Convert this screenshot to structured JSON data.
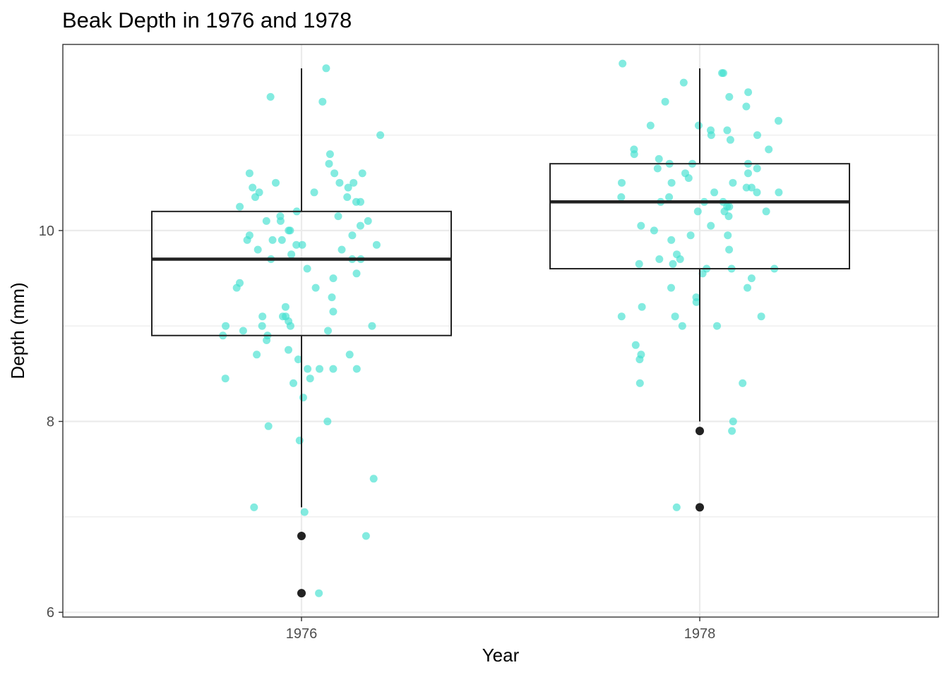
{
  "chart_data": {
    "type": "boxplot",
    "title": "Beak Depth in 1976 and 1978",
    "xlabel": "Year",
    "ylabel": "Depth (mm)",
    "categories": [
      "1976",
      "1978"
    ],
    "ylim": [
      5.95,
      11.95
    ],
    "y_ticks": [
      6,
      8,
      10
    ],
    "grid": true,
    "colors": {
      "points": "#40E0D0",
      "box": "#222222",
      "grid": "#ebebeb",
      "panel_border": "#333333"
    },
    "boxes": [
      {
        "category": "1976",
        "min": 7.1,
        "q1": 8.9,
        "median": 9.7,
        "q3": 10.2,
        "max": 11.7,
        "outliers": [
          6.8,
          6.2
        ]
      },
      {
        "category": "1978",
        "min": 8.0,
        "q1": 9.6,
        "median": 10.3,
        "q3": 10.7,
        "max": 11.7,
        "outliers": [
          7.9,
          7.1
        ]
      }
    ],
    "points": [
      {
        "x": 1976,
        "y": 11.7
      },
      {
        "x": 1976,
        "y": 11.4
      },
      {
        "x": 1976,
        "y": 11.35
      },
      {
        "x": 1976,
        "y": 11.0
      },
      {
        "x": 1976,
        "y": 10.8
      },
      {
        "x": 1976,
        "y": 10.7
      },
      {
        "x": 1976,
        "y": 10.6
      },
      {
        "x": 1976,
        "y": 10.6
      },
      {
        "x": 1976,
        "y": 10.6
      },
      {
        "x": 1976,
        "y": 10.5
      },
      {
        "x": 1976,
        "y": 10.5
      },
      {
        "x": 1976,
        "y": 10.5
      },
      {
        "x": 1976,
        "y": 10.45
      },
      {
        "x": 1976,
        "y": 10.45
      },
      {
        "x": 1976,
        "y": 10.4
      },
      {
        "x": 1976,
        "y": 10.4
      },
      {
        "x": 1976,
        "y": 10.35
      },
      {
        "x": 1976,
        "y": 10.35
      },
      {
        "x": 1976,
        "y": 10.3
      },
      {
        "x": 1976,
        "y": 10.3
      },
      {
        "x": 1976,
        "y": 10.25
      },
      {
        "x": 1976,
        "y": 10.2
      },
      {
        "x": 1976,
        "y": 10.15
      },
      {
        "x": 1976,
        "y": 10.15
      },
      {
        "x": 1976,
        "y": 10.1
      },
      {
        "x": 1976,
        "y": 10.1
      },
      {
        "x": 1976,
        "y": 10.1
      },
      {
        "x": 1976,
        "y": 10.05
      },
      {
        "x": 1976,
        "y": 10.0
      },
      {
        "x": 1976,
        "y": 10.0
      },
      {
        "x": 1976,
        "y": 9.95
      },
      {
        "x": 1976,
        "y": 9.95
      },
      {
        "x": 1976,
        "y": 9.9
      },
      {
        "x": 1976,
        "y": 9.9
      },
      {
        "x": 1976,
        "y": 9.9
      },
      {
        "x": 1976,
        "y": 9.85
      },
      {
        "x": 1976,
        "y": 9.85
      },
      {
        "x": 1976,
        "y": 9.85
      },
      {
        "x": 1976,
        "y": 9.8
      },
      {
        "x": 1976,
        "y": 9.8
      },
      {
        "x": 1976,
        "y": 9.75
      },
      {
        "x": 1976,
        "y": 9.7
      },
      {
        "x": 1976,
        "y": 9.7
      },
      {
        "x": 1976,
        "y": 9.7
      },
      {
        "x": 1976,
        "y": 9.6
      },
      {
        "x": 1976,
        "y": 9.55
      },
      {
        "x": 1976,
        "y": 9.5
      },
      {
        "x": 1976,
        "y": 9.45
      },
      {
        "x": 1976,
        "y": 9.4
      },
      {
        "x": 1976,
        "y": 9.4
      },
      {
        "x": 1976,
        "y": 9.3
      },
      {
        "x": 1976,
        "y": 9.2
      },
      {
        "x": 1976,
        "y": 9.15
      },
      {
        "x": 1976,
        "y": 9.1
      },
      {
        "x": 1976,
        "y": 9.1
      },
      {
        "x": 1976,
        "y": 9.1
      },
      {
        "x": 1976,
        "y": 9.05
      },
      {
        "x": 1976,
        "y": 9.0
      },
      {
        "x": 1976,
        "y": 9.0
      },
      {
        "x": 1976,
        "y": 9.0
      },
      {
        "x": 1976,
        "y": 9.0
      },
      {
        "x": 1976,
        "y": 8.95
      },
      {
        "x": 1976,
        "y": 8.95
      },
      {
        "x": 1976,
        "y": 8.9
      },
      {
        "x": 1976,
        "y": 8.9
      },
      {
        "x": 1976,
        "y": 8.85
      },
      {
        "x": 1976,
        "y": 8.75
      },
      {
        "x": 1976,
        "y": 8.7
      },
      {
        "x": 1976,
        "y": 8.7
      },
      {
        "x": 1976,
        "y": 8.65
      },
      {
        "x": 1976,
        "y": 8.55
      },
      {
        "x": 1976,
        "y": 8.55
      },
      {
        "x": 1976,
        "y": 8.55
      },
      {
        "x": 1976,
        "y": 8.55
      },
      {
        "x": 1976,
        "y": 8.45
      },
      {
        "x": 1976,
        "y": 8.45
      },
      {
        "x": 1976,
        "y": 8.4
      },
      {
        "x": 1976,
        "y": 8.25
      },
      {
        "x": 1976,
        "y": 8.0
      },
      {
        "x": 1976,
        "y": 7.95
      },
      {
        "x": 1976,
        "y": 7.8
      },
      {
        "x": 1976,
        "y": 7.4
      },
      {
        "x": 1976,
        "y": 7.1
      },
      {
        "x": 1976,
        "y": 7.05
      },
      {
        "x": 1976,
        "y": 6.8
      },
      {
        "x": 1976,
        "y": 6.2
      },
      {
        "x": 1978,
        "y": 11.75
      },
      {
        "x": 1978,
        "y": 11.65
      },
      {
        "x": 1978,
        "y": 11.65
      },
      {
        "x": 1978,
        "y": 11.55
      },
      {
        "x": 1978,
        "y": 11.45
      },
      {
        "x": 1978,
        "y": 11.4
      },
      {
        "x": 1978,
        "y": 11.35
      },
      {
        "x": 1978,
        "y": 11.3
      },
      {
        "x": 1978,
        "y": 11.15
      },
      {
        "x": 1978,
        "y": 11.1
      },
      {
        "x": 1978,
        "y": 11.1
      },
      {
        "x": 1978,
        "y": 11.05
      },
      {
        "x": 1978,
        "y": 11.05
      },
      {
        "x": 1978,
        "y": 11.0
      },
      {
        "x": 1978,
        "y": 11.0
      },
      {
        "x": 1978,
        "y": 10.95
      },
      {
        "x": 1978,
        "y": 10.85
      },
      {
        "x": 1978,
        "y": 10.85
      },
      {
        "x": 1978,
        "y": 10.8
      },
      {
        "x": 1978,
        "y": 10.75
      },
      {
        "x": 1978,
        "y": 10.7
      },
      {
        "x": 1978,
        "y": 10.7
      },
      {
        "x": 1978,
        "y": 10.7
      },
      {
        "x": 1978,
        "y": 10.65
      },
      {
        "x": 1978,
        "y": 10.65
      },
      {
        "x": 1978,
        "y": 10.6
      },
      {
        "x": 1978,
        "y": 10.6
      },
      {
        "x": 1978,
        "y": 10.55
      },
      {
        "x": 1978,
        "y": 10.5
      },
      {
        "x": 1978,
        "y": 10.5
      },
      {
        "x": 1978,
        "y": 10.5
      },
      {
        "x": 1978,
        "y": 10.45
      },
      {
        "x": 1978,
        "y": 10.45
      },
      {
        "x": 1978,
        "y": 10.4
      },
      {
        "x": 1978,
        "y": 10.4
      },
      {
        "x": 1978,
        "y": 10.4
      },
      {
        "x": 1978,
        "y": 10.35
      },
      {
        "x": 1978,
        "y": 10.35
      },
      {
        "x": 1978,
        "y": 10.3
      },
      {
        "x": 1978,
        "y": 10.3
      },
      {
        "x": 1978,
        "y": 10.3
      },
      {
        "x": 1978,
        "y": 10.25
      },
      {
        "x": 1978,
        "y": 10.25
      },
      {
        "x": 1978,
        "y": 10.2
      },
      {
        "x": 1978,
        "y": 10.2
      },
      {
        "x": 1978,
        "y": 10.2
      },
      {
        "x": 1978,
        "y": 10.15
      },
      {
        "x": 1978,
        "y": 10.05
      },
      {
        "x": 1978,
        "y": 10.05
      },
      {
        "x": 1978,
        "y": 10.0
      },
      {
        "x": 1978,
        "y": 9.95
      },
      {
        "x": 1978,
        "y": 9.95
      },
      {
        "x": 1978,
        "y": 9.9
      },
      {
        "x": 1978,
        "y": 9.8
      },
      {
        "x": 1978,
        "y": 9.75
      },
      {
        "x": 1978,
        "y": 9.7
      },
      {
        "x": 1978,
        "y": 9.7
      },
      {
        "x": 1978,
        "y": 9.65
      },
      {
        "x": 1978,
        "y": 9.65
      },
      {
        "x": 1978,
        "y": 9.6
      },
      {
        "x": 1978,
        "y": 9.6
      },
      {
        "x": 1978,
        "y": 9.6
      },
      {
        "x": 1978,
        "y": 9.55
      },
      {
        "x": 1978,
        "y": 9.5
      },
      {
        "x": 1978,
        "y": 9.4
      },
      {
        "x": 1978,
        "y": 9.4
      },
      {
        "x": 1978,
        "y": 9.3
      },
      {
        "x": 1978,
        "y": 9.25
      },
      {
        "x": 1978,
        "y": 9.2
      },
      {
        "x": 1978,
        "y": 9.1
      },
      {
        "x": 1978,
        "y": 9.1
      },
      {
        "x": 1978,
        "y": 9.1
      },
      {
        "x": 1978,
        "y": 9.0
      },
      {
        "x": 1978,
        "y": 9.0
      },
      {
        "x": 1978,
        "y": 8.8
      },
      {
        "x": 1978,
        "y": 8.7
      },
      {
        "x": 1978,
        "y": 8.65
      },
      {
        "x": 1978,
        "y": 8.4
      },
      {
        "x": 1978,
        "y": 8.4
      },
      {
        "x": 1978,
        "y": 8.0
      },
      {
        "x": 1978,
        "y": 7.9
      },
      {
        "x": 1978,
        "y": 7.1
      }
    ]
  }
}
